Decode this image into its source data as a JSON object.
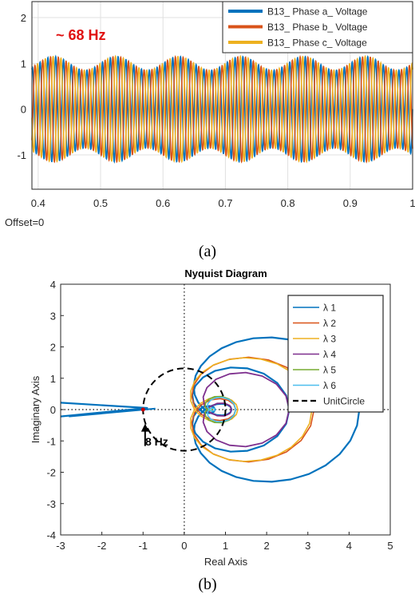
{
  "chart_data": [
    {
      "type": "line",
      "panel_caption": "(a)",
      "title": "",
      "xlabel": "",
      "ylabel": "",
      "xlim": [
        0.39,
        1.0
      ],
      "ylim": [
        -1.75,
        2.35
      ],
      "x_ticks": [
        0.4,
        0.5,
        0.6,
        0.7,
        0.8,
        0.9,
        1
      ],
      "y_ticks": [
        -1,
        0,
        1,
        2
      ],
      "grid": true,
      "legend_position": "top-right",
      "annotation": "~ 68 Hz",
      "annotation_color": "#e01010",
      "footer_note": "Offset=0",
      "signal": {
        "amplitude": 1.0,
        "modulation_amplitude": 0.15,
        "modulation_frequency_hz": 10,
        "phase_offsets_deg": [
          0,
          -120,
          120
        ]
      },
      "series": [
        {
          "name": "B13_ Phase a_ Voltage",
          "color": "#0072bd"
        },
        {
          "name": "B13_ Phase b_ Voltage",
          "color": "#d95319"
        },
        {
          "name": "B13_ Phase c_ Voltage",
          "color": "#edb120"
        }
      ]
    },
    {
      "type": "line",
      "panel_caption": "(b)",
      "title": "Nyquist Diagram",
      "xlabel": "Real Axis",
      "ylabel": "Imaginary Axis",
      "xlim": [
        -3,
        5
      ],
      "ylim": [
        -4,
        4
      ],
      "x_ticks": [
        -3,
        -2,
        -1,
        0,
        1,
        2,
        3,
        4,
        5
      ],
      "y_ticks": [
        -4,
        -3,
        -2,
        -1,
        0,
        1,
        2,
        3,
        4
      ],
      "grid": false,
      "legend_position": "top-right",
      "annotation": "8 Hz",
      "annotation_point": [
        -0.95,
        -0.45
      ],
      "critical_point": [
        -1,
        0
      ],
      "series": [
        {
          "name": "λ 1",
          "color": "#0072bd"
        },
        {
          "name": "λ 2",
          "color": "#d95319"
        },
        {
          "name": "λ 3",
          "color": "#edb120"
        },
        {
          "name": "λ 4",
          "color": "#7e2f8e"
        },
        {
          "name": "λ 5",
          "color": "#77ac30"
        },
        {
          "name": "λ 6",
          "color": "#4dbeee"
        },
        {
          "name": "UnitCircle",
          "color": "#000000",
          "dashed": true,
          "center": [
            0,
            0
          ],
          "radius": 1
        }
      ]
    }
  ]
}
